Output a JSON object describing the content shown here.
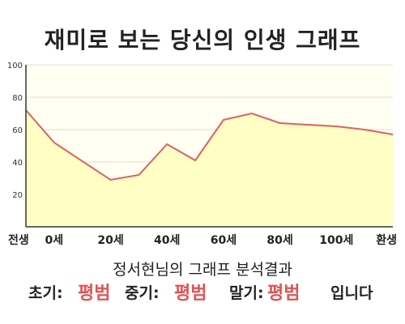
{
  "chart_data": {
    "type": "area",
    "title": "재미로 보는 당신의 인생 그래프",
    "x": [
      -10,
      0,
      20,
      30,
      40,
      50,
      60,
      70,
      80,
      90,
      100,
      110,
      120
    ],
    "x_tick_values": [
      -10,
      0,
      20,
      40,
      60,
      80,
      100,
      120
    ],
    "x_tick_labels": [
      "전생",
      "0세",
      "20세",
      "40세",
      "60세",
      "80세",
      "100세",
      "환생"
    ],
    "series": [
      {
        "values": [
          72,
          52,
          29,
          32,
          51,
          41,
          66,
          70,
          64,
          63,
          62,
          60,
          57
        ]
      }
    ],
    "xlim": [
      -10,
      120
    ],
    "ylim": [
      0,
      100
    ],
    "y_ticks": [
      20,
      40,
      60,
      80,
      100
    ],
    "grid": true,
    "colors": {
      "line": "#e06060",
      "fill": "#ffffc0",
      "plot_bg": "#fffff2",
      "grid": "#dddddd"
    }
  },
  "result": {
    "caption": "정서현님의 그래프 분석결과",
    "early_label": "초기:",
    "early_value": "평범",
    "middle_label": "중기:",
    "middle_value": "평범",
    "late_label": "말기:",
    "late_value": "평범",
    "ending": "입니다"
  }
}
